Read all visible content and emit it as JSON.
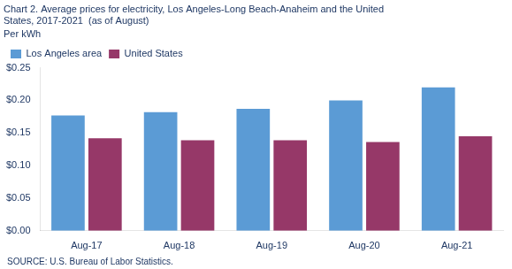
{
  "chart_data": {
    "type": "bar",
    "title": [
      "Chart 2. Average prices for electricity, Los Angeles-Long Beach-Anaheim and the United",
      "States, 2017-2021  (as of August)"
    ],
    "subtitle": "Per kWh",
    "annotations": [
      "SOURCE: U.S. Bureau of Labor Statistics."
    ],
    "categories": [
      "Aug-17",
      "Aug-18",
      "Aug-19",
      "Aug-20",
      "Aug-21"
    ],
    "series": [
      {
        "name": "Los Angeles area",
        "color": "#5B9BD5",
        "values": [
          0.177,
          0.182,
          0.187,
          0.2,
          0.22
        ]
      },
      {
        "name": "United States",
        "color": "#963868",
        "values": [
          0.142,
          0.139,
          0.139,
          0.136,
          0.145
        ]
      }
    ],
    "ylim": [
      0.0,
      0.25
    ],
    "yticks": [
      {
        "value": 0.0,
        "label": "$0.00"
      },
      {
        "value": 0.05,
        "label": "$0.05"
      },
      {
        "value": 0.1,
        "label": "$0.10"
      },
      {
        "value": 0.15,
        "label": "$0.15"
      },
      {
        "value": 0.2,
        "label": "$0.20"
      },
      {
        "value": 0.25,
        "label": "$0.25"
      }
    ],
    "grid": false,
    "legend": "upper left"
  }
}
